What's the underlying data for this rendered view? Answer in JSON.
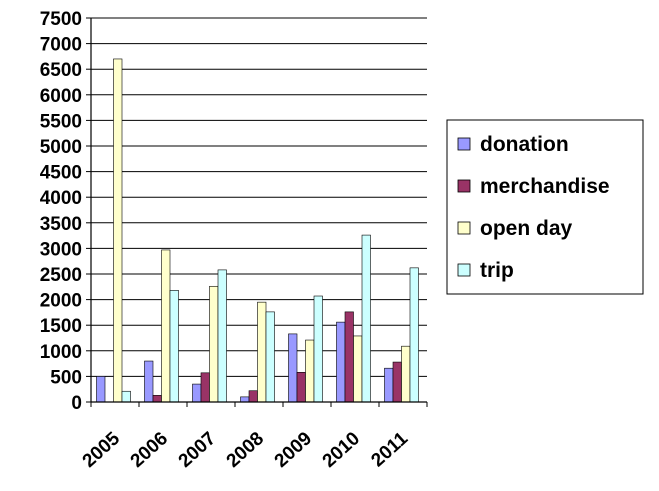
{
  "chart_data": {
    "type": "bar",
    "title": "",
    "xlabel": "",
    "ylabel": "",
    "categories": [
      "2005",
      "2006",
      "2007",
      "2008",
      "2009",
      "2010",
      "2011"
    ],
    "series": [
      {
        "name": "donation",
        "color": "#9999ff",
        "values": [
          500,
          800,
          350,
          100,
          1330,
          1560,
          660
        ]
      },
      {
        "name": "merchandise",
        "color": "#993366",
        "values": [
          0,
          130,
          570,
          220,
          580,
          1760,
          780
        ]
      },
      {
        "name": "open day",
        "color": "#ffffcc",
        "values": [
          6700,
          2970,
          2260,
          1950,
          1210,
          1290,
          1090
        ]
      },
      {
        "name": "trip",
        "color": "#ccffff",
        "values": [
          210,
          2180,
          2580,
          1760,
          2070,
          3260,
          2620
        ]
      }
    ],
    "ylim": [
      0,
      7500
    ],
    "yticks": [
      "0",
      "500",
      "1000",
      "1500",
      "2000",
      "2500",
      "3000",
      "3500",
      "4000",
      "4500",
      "5000",
      "5500",
      "6000",
      "6500",
      "7000",
      "7500"
    ],
    "grid": true,
    "legend_position": "right"
  }
}
